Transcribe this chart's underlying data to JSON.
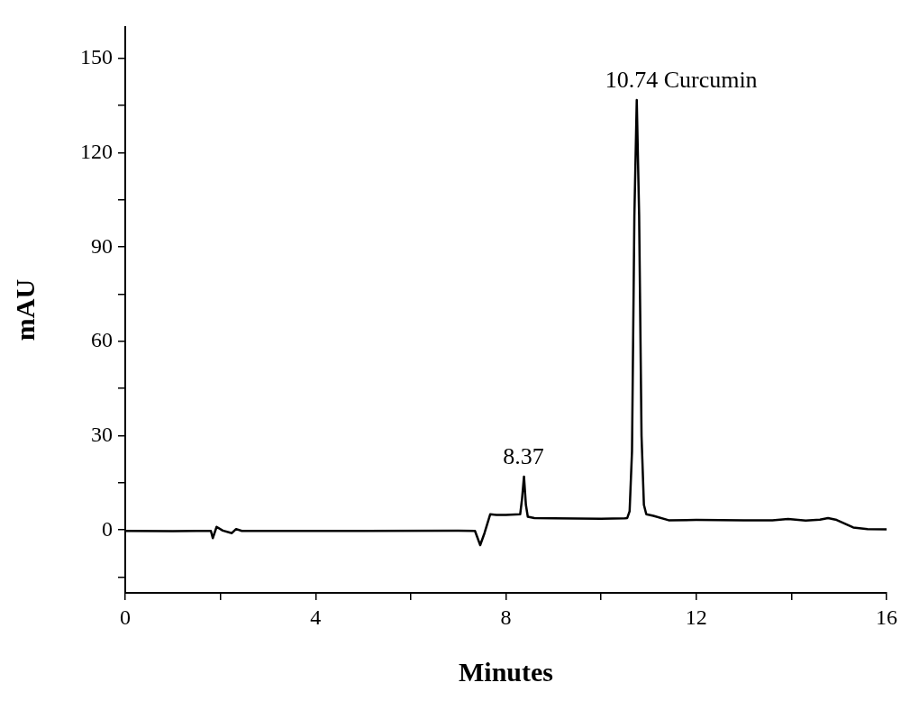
{
  "chart_data": {
    "type": "line",
    "xlabel": "Minutes",
    "ylabel": "mAU",
    "xlim": [
      0,
      16
    ],
    "xticks": [
      0,
      {
        "value": 2,
        "label": null
      },
      4,
      {
        "value": 6,
        "label": null
      },
      8,
      {
        "value": 10,
        "label": null
      },
      12,
      {
        "value": 14,
        "label": null
      },
      16
    ],
    "ylim": [
      -20,
      160
    ],
    "yticks": [
      {
        "value": -15,
        "label": null
      },
      0,
      {
        "value": 15,
        "label": null
      },
      30,
      {
        "value": 45,
        "label": null
      },
      60,
      {
        "value": 75,
        "label": null
      },
      90,
      {
        "value": 105,
        "label": null
      },
      120,
      {
        "value": 135,
        "label": null
      },
      150
    ],
    "series": [
      {
        "color": "#000000",
        "x": [
          0,
          1,
          1.5,
          1.8,
          1.84,
          1.92,
          2.05,
          2.24,
          2.33,
          2.45,
          3,
          5,
          7,
          7.35,
          7.46,
          7.55,
          7.67,
          7.8,
          8,
          8.3,
          8.34,
          8.38,
          8.42,
          8.46,
          8.6,
          9,
          10,
          10.5,
          10.55,
          10.6,
          10.65,
          10.7,
          10.75,
          10.8,
          10.85,
          10.9,
          10.95,
          11.1,
          11.42,
          12,
          13,
          13.6,
          13.93,
          14.3,
          14.6,
          14.77,
          14.95,
          15.3,
          15.6,
          16
        ],
        "values": [
          -0.3,
          -0.4,
          -0.3,
          -0.3,
          -2.6,
          1,
          -0.2,
          -1,
          0.3,
          -0.3,
          -0.3,
          -0.3,
          -0.2,
          -0.3,
          -4.8,
          -1,
          5,
          4.8,
          4.8,
          5,
          10,
          17,
          8,
          4.2,
          3.8,
          3.7,
          3.6,
          3.7,
          3.8,
          6,
          25,
          100,
          136.8,
          100,
          30,
          8,
          5,
          4.5,
          3.1,
          3.2,
          3.1,
          3.1,
          3.5,
          3,
          3.3,
          3.8,
          3.2,
          0.8,
          0.3,
          0.2
        ]
      }
    ],
    "annotations": [
      {
        "text": "8.37",
        "x": 8.37,
        "y": 17
      },
      {
        "text": "10.74 Curcumin",
        "x": 10.74,
        "y": 136.8
      }
    ]
  }
}
